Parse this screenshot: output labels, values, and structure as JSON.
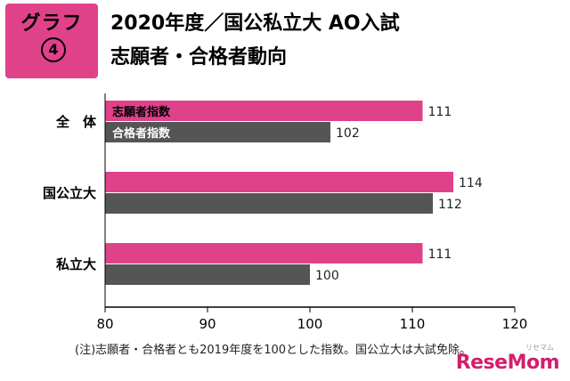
{
  "header": {
    "badge_label": "グラフ",
    "badge_number": "4",
    "title_line1": "2020年度／国公私立大 AO入試",
    "title_line2": "志願者・合格者動向"
  },
  "note": "(注)志願者・合格者とも2019年度を100とした指数。国公立大は大試免除。",
  "logo": {
    "text": "ReseMom",
    "sub": "リセマム"
  },
  "colors": {
    "applicants": "#e0428a",
    "passers": "#555555"
  },
  "chart_data": {
    "type": "bar",
    "orientation": "horizontal",
    "categories": [
      "全　体",
      "国公立大",
      "私立大"
    ],
    "series": [
      {
        "name": "志願者指数",
        "values": [
          111,
          114,
          111
        ],
        "color": "#e0428a"
      },
      {
        "name": "合格者指数",
        "values": [
          102,
          112,
          100
        ],
        "color": "#555555"
      }
    ],
    "xlim": [
      80,
      120
    ],
    "x_ticks": [
      80,
      90,
      100,
      110,
      120
    ],
    "legend": "inside-first-bars",
    "grid": false
  }
}
